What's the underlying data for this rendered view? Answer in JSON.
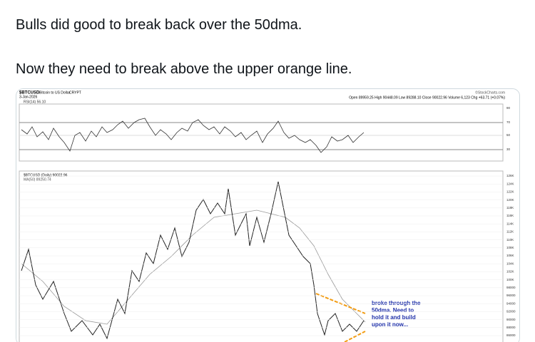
{
  "tweet": {
    "line1": "Bulls did good to break back over the 50dma.",
    "line2": "Now they need to break above the upper orange line."
  },
  "chart_image": {
    "symbol": "$BTCUSD",
    "name": "Bitcoin to US Dollar",
    "exchange": "CRYPT",
    "date": "3-Jan-2026",
    "quote": "Open 89959.25 High 90448.09 Low 89288.10 Close 90022.96 Volume 6,123 Chg +63.71 (+0.07%)",
    "credit": "©StockCharts.com",
    "rsi_label": "RSI(14) 56.10",
    "rsi_axis": [
      "90",
      "70",
      "50",
      "30"
    ],
    "price_label": "$BTCUSD (Daily) 90022.96",
    "ma_label": "MA(50) 89250.74",
    "price_axis": [
      "126K",
      "124K",
      "122K",
      "120K",
      "118K",
      "116K",
      "114K",
      "112K",
      "110K",
      "108K",
      "106K",
      "104K",
      "102K",
      "100K",
      "98000",
      "96000",
      "94000",
      "92000",
      "90000",
      "88000",
      "86000"
    ],
    "annotation": [
      "broke through the",
      "50dma. Need to",
      "hold it and build",
      "upon it now..."
    ]
  }
}
